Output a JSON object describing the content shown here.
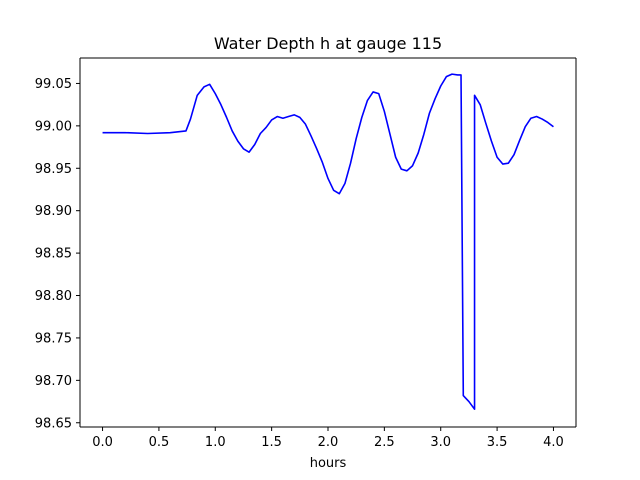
{
  "chart_data": {
    "type": "line",
    "title": "Water Depth h at gauge 115",
    "xlabel": "hours",
    "ylabel": "",
    "xlim": [
      -0.2,
      4.2
    ],
    "ylim": [
      98.645,
      99.08
    ],
    "xticks": [
      0.0,
      0.5,
      1.0,
      1.5,
      2.0,
      2.5,
      3.0,
      3.5,
      4.0
    ],
    "xtick_labels": [
      "0.0",
      "0.5",
      "1.0",
      "1.5",
      "2.0",
      "2.5",
      "3.0",
      "3.5",
      "4.0"
    ],
    "yticks": [
      98.65,
      98.7,
      98.75,
      98.8,
      98.85,
      98.9,
      98.95,
      99.0,
      99.05
    ],
    "ytick_labels": [
      "98.65",
      "98.70",
      "98.75",
      "98.80",
      "98.85",
      "98.90",
      "98.95",
      "99.00",
      "99.05"
    ],
    "grid": false,
    "legend": "none",
    "series": [
      {
        "color": "#0000ff",
        "x": [
          0.0,
          0.2,
          0.4,
          0.6,
          0.74,
          0.78,
          0.84,
          0.9,
          0.95,
          1.0,
          1.05,
          1.1,
          1.15,
          1.2,
          1.25,
          1.3,
          1.35,
          1.4,
          1.45,
          1.5,
          1.55,
          1.6,
          1.65,
          1.7,
          1.75,
          1.8,
          1.85,
          1.9,
          1.95,
          2.0,
          2.05,
          2.1,
          2.15,
          2.2,
          2.25,
          2.3,
          2.35,
          2.4,
          2.45,
          2.5,
          2.55,
          2.6,
          2.65,
          2.7,
          2.75,
          2.8,
          2.85,
          2.9,
          2.95,
          3.0,
          3.05,
          3.1,
          3.15,
          3.18,
          3.2,
          3.2,
          3.25,
          3.3,
          3.3,
          3.35,
          3.4,
          3.45,
          3.5,
          3.55,
          3.6,
          3.65,
          3.7,
          3.75,
          3.8,
          3.85,
          3.9,
          3.95,
          4.0
        ],
        "y": [
          98.992,
          98.992,
          98.991,
          98.992,
          98.994,
          99.008,
          99.036,
          99.046,
          99.049,
          99.038,
          99.025,
          99.01,
          98.994,
          98.982,
          98.973,
          98.969,
          98.978,
          98.991,
          98.998,
          99.007,
          99.011,
          99.009,
          99.011,
          99.013,
          99.01,
          99.002,
          98.988,
          98.973,
          98.957,
          98.938,
          98.924,
          98.92,
          98.932,
          98.956,
          98.985,
          99.01,
          99.03,
          99.04,
          99.038,
          99.017,
          98.99,
          98.963,
          98.949,
          98.947,
          98.953,
          98.968,
          98.99,
          99.015,
          99.032,
          99.047,
          99.058,
          99.061,
          99.06,
          99.06,
          98.687,
          98.682,
          98.675,
          98.666,
          99.036,
          99.025,
          99.003,
          98.982,
          98.963,
          98.955,
          98.956,
          98.966,
          98.983,
          98.999,
          99.009,
          99.011,
          99.008,
          99.004,
          98.999
        ]
      }
    ]
  }
}
